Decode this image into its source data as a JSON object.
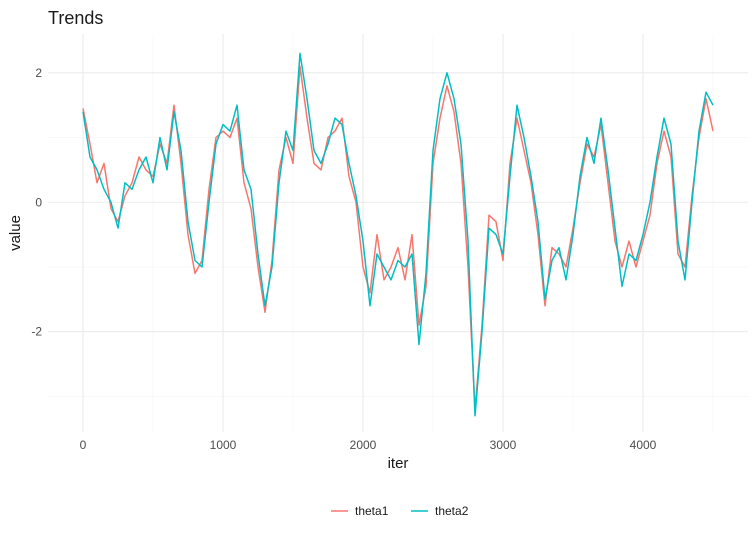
{
  "chart_data": {
    "type": "line",
    "title": "Trends",
    "xlabel": "iter",
    "ylabel": "value",
    "xlim": [
      -250,
      4750
    ],
    "ylim": [
      -3.55,
      2.6
    ],
    "x_ticks": [
      0,
      1000,
      2000,
      3000,
      4000
    ],
    "x_tick_labels": [
      "0",
      "1000",
      "2000",
      "3000",
      "4000"
    ],
    "y_ticks": [
      -2,
      0,
      2
    ],
    "y_tick_labels": [
      "-2",
      "0",
      "2"
    ],
    "grid": true,
    "legend": {
      "position": "bottom",
      "entries": [
        "theta1",
        "theta2"
      ]
    },
    "series": [
      {
        "name": "theta1",
        "color": "#F8766D",
        "points": [
          [
            0,
            1.45
          ],
          [
            50,
            0.9
          ],
          [
            100,
            0.3
          ],
          [
            150,
            0.6
          ],
          [
            200,
            -0.1
          ],
          [
            250,
            -0.3
          ],
          [
            300,
            0.1
          ],
          [
            350,
            0.3
          ],
          [
            400,
            0.7
          ],
          [
            450,
            0.5
          ],
          [
            500,
            0.4
          ],
          [
            550,
            0.9
          ],
          [
            600,
            0.6
          ],
          [
            650,
            1.5
          ],
          [
            700,
            0.6
          ],
          [
            750,
            -0.5
          ],
          [
            800,
            -1.1
          ],
          [
            850,
            -0.9
          ],
          [
            900,
            0.2
          ],
          [
            950,
            1.0
          ],
          [
            1000,
            1.1
          ],
          [
            1050,
            1.0
          ],
          [
            1100,
            1.3
          ],
          [
            1150,
            0.3
          ],
          [
            1200,
            -0.1
          ],
          [
            1250,
            -1.0
          ],
          [
            1300,
            -1.7
          ],
          [
            1350,
            -0.9
          ],
          [
            1400,
            0.5
          ],
          [
            1450,
            1.0
          ],
          [
            1500,
            0.6
          ],
          [
            1550,
            2.1
          ],
          [
            1600,
            1.3
          ],
          [
            1650,
            0.6
          ],
          [
            1700,
            0.5
          ],
          [
            1750,
            1.0
          ],
          [
            1800,
            1.1
          ],
          [
            1850,
            1.3
          ],
          [
            1900,
            0.4
          ],
          [
            1950,
            0.0
          ],
          [
            2000,
            -1.0
          ],
          [
            2050,
            -1.4
          ],
          [
            2100,
            -0.5
          ],
          [
            2150,
            -1.2
          ],
          [
            2200,
            -1.0
          ],
          [
            2250,
            -0.7
          ],
          [
            2300,
            -1.2
          ],
          [
            2350,
            -0.5
          ],
          [
            2400,
            -1.9
          ],
          [
            2450,
            -1.3
          ],
          [
            2500,
            0.6
          ],
          [
            2550,
            1.3
          ],
          [
            2600,
            1.8
          ],
          [
            2650,
            1.4
          ],
          [
            2700,
            0.6
          ],
          [
            2750,
            -1.0
          ],
          [
            2800,
            -3.2
          ],
          [
            2850,
            -1.9
          ],
          [
            2900,
            -0.2
          ],
          [
            2950,
            -0.3
          ],
          [
            3000,
            -0.9
          ],
          [
            3050,
            0.6
          ],
          [
            3100,
            1.3
          ],
          [
            3150,
            0.8
          ],
          [
            3200,
            0.3
          ],
          [
            3250,
            -0.5
          ],
          [
            3300,
            -1.6
          ],
          [
            3350,
            -0.7
          ],
          [
            3400,
            -0.8
          ],
          [
            3450,
            -1.0
          ],
          [
            3500,
            -0.4
          ],
          [
            3550,
            0.3
          ],
          [
            3600,
            0.9
          ],
          [
            3650,
            0.7
          ],
          [
            3700,
            1.2
          ],
          [
            3750,
            0.3
          ],
          [
            3800,
            -0.6
          ],
          [
            3850,
            -1.0
          ],
          [
            3900,
            -0.6
          ],
          [
            3950,
            -1.0
          ],
          [
            4000,
            -0.6
          ],
          [
            4050,
            -0.2
          ],
          [
            4100,
            0.6
          ],
          [
            4150,
            1.1
          ],
          [
            4200,
            0.7
          ],
          [
            4250,
            -0.8
          ],
          [
            4300,
            -1.0
          ],
          [
            4350,
            0.1
          ],
          [
            4400,
            1.0
          ],
          [
            4450,
            1.6
          ],
          [
            4500,
            1.1
          ]
        ]
      },
      {
        "name": "theta2",
        "color": "#00BFC4",
        "points": [
          [
            0,
            1.4
          ],
          [
            50,
            0.7
          ],
          [
            100,
            0.5
          ],
          [
            150,
            0.2
          ],
          [
            200,
            0.0
          ],
          [
            250,
            -0.4
          ],
          [
            300,
            0.3
          ],
          [
            350,
            0.2
          ],
          [
            400,
            0.5
          ],
          [
            450,
            0.7
          ],
          [
            500,
            0.3
          ],
          [
            550,
            1.0
          ],
          [
            600,
            0.5
          ],
          [
            650,
            1.4
          ],
          [
            700,
            0.8
          ],
          [
            750,
            -0.3
          ],
          [
            800,
            -0.9
          ],
          [
            850,
            -1.0
          ],
          [
            900,
            0.0
          ],
          [
            950,
            0.9
          ],
          [
            1000,
            1.2
          ],
          [
            1050,
            1.1
          ],
          [
            1100,
            1.5
          ],
          [
            1150,
            0.5
          ],
          [
            1200,
            0.2
          ],
          [
            1250,
            -0.8
          ],
          [
            1300,
            -1.6
          ],
          [
            1350,
            -1.0
          ],
          [
            1400,
            0.3
          ],
          [
            1450,
            1.1
          ],
          [
            1500,
            0.8
          ],
          [
            1550,
            2.3
          ],
          [
            1600,
            1.6
          ],
          [
            1650,
            0.8
          ],
          [
            1700,
            0.6
          ],
          [
            1750,
            0.9
          ],
          [
            1800,
            1.3
          ],
          [
            1850,
            1.2
          ],
          [
            1900,
            0.6
          ],
          [
            1950,
            0.1
          ],
          [
            2000,
            -0.6
          ],
          [
            2050,
            -1.6
          ],
          [
            2100,
            -0.8
          ],
          [
            2150,
            -1.0
          ],
          [
            2200,
            -1.2
          ],
          [
            2250,
            -0.9
          ],
          [
            2300,
            -1.0
          ],
          [
            2350,
            -0.8
          ],
          [
            2400,
            -2.2
          ],
          [
            2450,
            -1.1
          ],
          [
            2500,
            0.8
          ],
          [
            2550,
            1.6
          ],
          [
            2600,
            2.0
          ],
          [
            2650,
            1.6
          ],
          [
            2700,
            0.9
          ],
          [
            2750,
            -0.6
          ],
          [
            2800,
            -3.3
          ],
          [
            2850,
            -2.0
          ],
          [
            2900,
            -0.4
          ],
          [
            2950,
            -0.5
          ],
          [
            3000,
            -0.8
          ],
          [
            3050,
            0.4
          ],
          [
            3100,
            1.5
          ],
          [
            3150,
            1.0
          ],
          [
            3200,
            0.4
          ],
          [
            3250,
            -0.3
          ],
          [
            3300,
            -1.5
          ],
          [
            3350,
            -0.9
          ],
          [
            3400,
            -0.7
          ],
          [
            3450,
            -1.2
          ],
          [
            3500,
            -0.5
          ],
          [
            3550,
            0.4
          ],
          [
            3600,
            1.0
          ],
          [
            3650,
            0.6
          ],
          [
            3700,
            1.3
          ],
          [
            3750,
            0.5
          ],
          [
            3800,
            -0.4
          ],
          [
            3850,
            -1.3
          ],
          [
            3900,
            -0.8
          ],
          [
            3950,
            -0.9
          ],
          [
            4000,
            -0.5
          ],
          [
            4050,
            0.0
          ],
          [
            4100,
            0.7
          ],
          [
            4150,
            1.3
          ],
          [
            4200,
            0.9
          ],
          [
            4250,
            -0.6
          ],
          [
            4300,
            -1.2
          ],
          [
            4350,
            0.0
          ],
          [
            4400,
            1.1
          ],
          [
            4450,
            1.7
          ],
          [
            4500,
            1.5
          ]
        ]
      }
    ]
  }
}
